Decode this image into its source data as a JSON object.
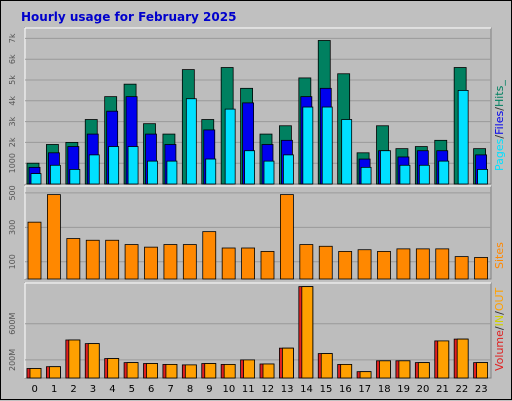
{
  "title": "Hourly usage for February 2025",
  "colors": {
    "background": "#c0c0c0",
    "plot_background": "#bdbdbd",
    "hits": "#008060",
    "files": "#0000ee",
    "pages": "#00e0ff",
    "sites": "#ff8800",
    "volume": "#e02020",
    "in": "#d0d000",
    "out": "#ffa000",
    "title": "#0000cc"
  },
  "chart_data": [
    {
      "type": "bar",
      "panel": "hits-files-pages",
      "categories": [
        "0",
        "1",
        "2",
        "3",
        "4",
        "5",
        "6",
        "7",
        "8",
        "9",
        "10",
        "11",
        "12",
        "13",
        "14",
        "15",
        "16",
        "17",
        "18",
        "19",
        "20",
        "21",
        "22",
        "23"
      ],
      "series": [
        {
          "name": "Hits",
          "values": [
            1000,
            1900,
            2000,
            3100,
            4200,
            4800,
            2900,
            2400,
            5500,
            3100,
            5600,
            4600,
            2400,
            2800,
            5100,
            6900,
            5300,
            1500,
            2800,
            1700,
            1800,
            2100,
            5600,
            1700
          ]
        },
        {
          "name": "Files",
          "values": [
            800,
            1500,
            1800,
            2400,
            3500,
            4200,
            2400,
            1900,
            0,
            2600,
            0,
            3900,
            1900,
            2100,
            4200,
            4600,
            0,
            1200,
            1600,
            1300,
            1600,
            1600,
            0,
            1400
          ]
        },
        {
          "name": "Pages",
          "values": [
            500,
            900,
            700,
            1400,
            1800,
            1800,
            1100,
            1100,
            4100,
            1200,
            3600,
            1600,
            1100,
            1400,
            3700,
            3700,
            3100,
            800,
            1600,
            900,
            900,
            1100,
            4500,
            700
          ]
        }
      ],
      "yticks": [
        "1000",
        "2k",
        "3k",
        "4k",
        "5k",
        "6k",
        "7k"
      ],
      "ylim": [
        0,
        7500
      ],
      "right_label": [
        "Pages",
        "/",
        "Files",
        "/",
        "Hits_"
      ]
    },
    {
      "type": "bar",
      "panel": "sites",
      "categories": [
        "0",
        "1",
        "2",
        "3",
        "4",
        "5",
        "6",
        "7",
        "8",
        "9",
        "10",
        "11",
        "12",
        "13",
        "14",
        "15",
        "16",
        "17",
        "18",
        "19",
        "20",
        "21",
        "22",
        "23"
      ],
      "series": [
        {
          "name": "Sites",
          "values": [
            330,
            490,
            235,
            225,
            225,
            200,
            185,
            200,
            200,
            275,
            180,
            180,
            160,
            490,
            200,
            190,
            160,
            170,
            160,
            175,
            175,
            175,
            130,
            125
          ]
        }
      ],
      "yticks": [
        "100",
        "300",
        "500"
      ],
      "ylim": [
        0,
        540
      ],
      "right_label": [
        "Sites"
      ]
    },
    {
      "type": "bar",
      "panel": "volume",
      "categories": [
        "0",
        "1",
        "2",
        "3",
        "4",
        "5",
        "6",
        "7",
        "8",
        "9",
        "10",
        "11",
        "12",
        "13",
        "14",
        "15",
        "16",
        "17",
        "18",
        "19",
        "20",
        "21",
        "22",
        "23"
      ],
      "series": [
        {
          "name": "Volume",
          "values": [
            105,
            125,
            420,
            380,
            215,
            170,
            160,
            150,
            145,
            160,
            150,
            200,
            155,
            330,
            270,
            150,
            70,
            190,
            190,
            170,
            410,
            430,
            170,
            0
          ]
        },
        {
          "name": "IN",
          "values": [
            0,
            0,
            0,
            0,
            0,
            0,
            0,
            0,
            0,
            0,
            0,
            0,
            0,
            0,
            0,
            0,
            0,
            0,
            0,
            0,
            0,
            0,
            0,
            0
          ]
        },
        {
          "name": "OUT",
          "values": [
            105,
            125,
            420,
            380,
            215,
            170,
            160,
            150,
            145,
            160,
            150,
            200,
            155,
            330,
            1010,
            270,
            150,
            70,
            190,
            190,
            170,
            410,
            430,
            170
          ]
        }
      ],
      "yticks": [
        "200M",
        "600M"
      ],
      "ylim": [
        0,
        1050
      ],
      "right_label": [
        "Volume",
        "/",
        "IN",
        "/",
        "OUT"
      ]
    }
  ]
}
